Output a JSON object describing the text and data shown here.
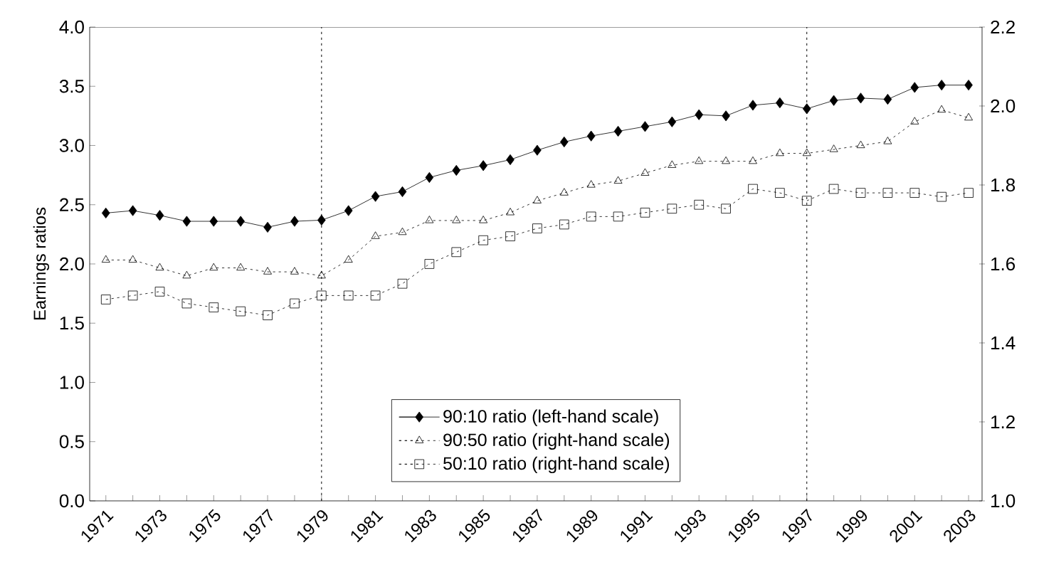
{
  "chart_data": {
    "type": "line",
    "ylabel": "Earnings ratios",
    "x": [
      1971,
      1972,
      1973,
      1974,
      1975,
      1976,
      1977,
      1978,
      1979,
      1980,
      1981,
      1982,
      1983,
      1984,
      1985,
      1986,
      1987,
      1988,
      1989,
      1990,
      1991,
      1992,
      1993,
      1994,
      1995,
      1996,
      1997,
      1998,
      1999,
      2000,
      2001,
      2002,
      2003
    ],
    "series": [
      {
        "name": "90:10 ratio (left-hand scale)",
        "color": "#000000",
        "marker": "diamond",
        "line_style": "solid",
        "values": [
          2.43,
          2.45,
          2.41,
          2.36,
          2.36,
          2.36,
          2.31,
          2.36,
          2.37,
          2.45,
          2.57,
          2.61,
          2.73,
          2.79,
          2.83,
          2.88,
          2.96,
          3.03,
          3.08,
          3.12,
          3.16,
          3.2,
          3.26,
          3.25,
          3.34,
          3.36,
          3.31,
          3.38,
          3.4,
          3.39,
          3.49,
          3.51,
          3.51
        ]
      },
      {
        "name": "90:50 ratio (right-hand scale)",
        "color": "#000000",
        "marker": "triangle",
        "line_style": "dotted",
        "axis": "y2",
        "values": [
          1.61,
          1.61,
          1.59,
          1.57,
          1.59,
          1.59,
          1.58,
          1.58,
          1.57,
          1.61,
          1.67,
          1.68,
          1.71,
          1.71,
          1.71,
          1.73,
          1.76,
          1.78,
          1.8,
          1.81,
          1.83,
          1.85,
          1.86,
          1.86,
          1.86,
          1.88,
          1.88,
          1.89,
          1.9,
          1.91,
          1.96,
          1.99,
          1.97
        ]
      },
      {
        "name": "50:10 ratio (right-hand scale)",
        "color": "#000000",
        "marker": "square",
        "line_style": "dotted",
        "axis": "y2",
        "values": [
          1.51,
          1.52,
          1.53,
          1.5,
          1.49,
          1.48,
          1.47,
          1.5,
          1.52,
          1.52,
          1.52,
          1.55,
          1.6,
          1.63,
          1.66,
          1.67,
          1.69,
          1.7,
          1.72,
          1.72,
          1.73,
          1.74,
          1.75,
          1.74,
          1.79,
          1.78,
          1.76,
          1.79,
          1.78,
          1.78,
          1.78,
          1.77,
          1.78
        ]
      }
    ],
    "xlim": [
      1970.4,
      2003.5
    ],
    "xticks": [
      1971,
      {
        "value": 1972,
        "label": null
      },
      1973,
      {
        "value": 1974,
        "label": null
      },
      1975,
      {
        "value": 1976,
        "label": null
      },
      1977,
      {
        "value": 1978,
        "label": null
      },
      1979,
      {
        "value": 1980,
        "label": null
      },
      1981,
      {
        "value": 1982,
        "label": null
      },
      1983,
      {
        "value": 1984,
        "label": null
      },
      1985,
      {
        "value": 1986,
        "label": null
      },
      1987,
      {
        "value": 1988,
        "label": null
      },
      1989,
      {
        "value": 1990,
        "label": null
      },
      1991,
      {
        "value": 1992,
        "label": null
      },
      1993,
      {
        "value": 1994,
        "label": null
      },
      1995,
      {
        "value": 1996,
        "label": null
      },
      1997,
      {
        "value": 1998,
        "label": null
      },
      1999,
      {
        "value": 2000,
        "label": null
      },
      2001,
      {
        "value": 2002,
        "label": null
      },
      2003
    ],
    "ylim": [
      0,
      4
    ],
    "yticks": [
      {
        "value": 0,
        "label": "0.0"
      },
      0.5,
      {
        "value": 1,
        "label": "1.0"
      },
      1.5,
      {
        "value": 2,
        "label": "2.0"
      },
      2.5,
      {
        "value": 3,
        "label": "3.0"
      },
      3.5,
      {
        "value": 4,
        "label": "4.0"
      }
    ],
    "y2lim": [
      1,
      2.2
    ],
    "y2ticks": [
      {
        "value": 1,
        "label": "1.0"
      },
      1.2,
      1.4,
      1.6,
      1.8,
      {
        "value": 2,
        "label": "2.0"
      },
      2.2
    ],
    "ref_lines": [
      {
        "axis": "x",
        "value": 1979,
        "line_style": "dotted"
      },
      {
        "axis": "x",
        "value": 1997,
        "line_style": "dotted"
      }
    ],
    "legend": "bottom"
  }
}
